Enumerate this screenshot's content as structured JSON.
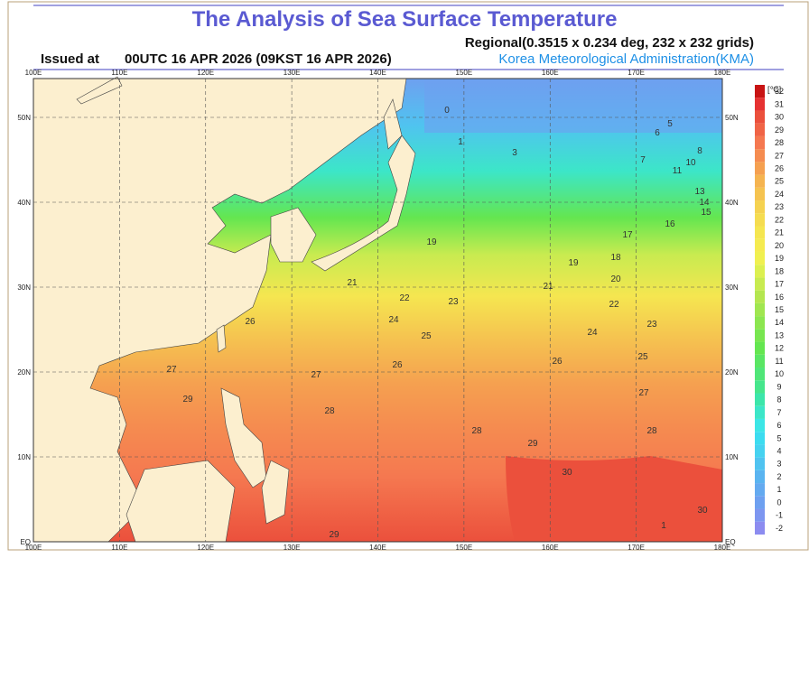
{
  "header": {
    "title": "The Analysis of Sea Surface Temperature",
    "subtitle": "Regional(0.3515 x 0.234 deg, 232 x 232 grids)",
    "issued_label": "Issued at",
    "issued_time": "00UTC 16 APR 2026 (09KST 16 APR 2026)",
    "agency": "Korea Meteorological Administration(KMA)"
  },
  "axes": {
    "longitudes": [
      "100E",
      "110E",
      "120E",
      "130E",
      "140E",
      "150E",
      "160E",
      "170E",
      "180E"
    ],
    "latitudes": [
      "EQ",
      "10N",
      "20N",
      "30N",
      "40N",
      "50N"
    ]
  },
  "colorbar": {
    "unit": "[℃]",
    "levels": [
      "-2",
      "-1",
      "0",
      "1",
      "2",
      "3",
      "4",
      "5",
      "6",
      "7",
      "8",
      "9",
      "10",
      "11",
      "12",
      "13",
      "14",
      "15",
      "16",
      "17",
      "18",
      "19",
      "20",
      "21",
      "22",
      "23",
      "24",
      "25",
      "26",
      "27",
      "28",
      "29",
      "30",
      "31",
      "32"
    ],
    "colors": [
      "#8c8cf0",
      "#7d96f0",
      "#6ea0f0",
      "#64aaf0",
      "#5ab4f0",
      "#50c3f0",
      "#46d2f0",
      "#3cdcf0",
      "#3ce6e6",
      "#3ce6c8",
      "#3ce6aa",
      "#46e68c",
      "#50e678",
      "#5ae664",
      "#64e650",
      "#78e650",
      "#8ce650",
      "#a0e650",
      "#b4e650",
      "#c8eb50",
      "#dcf050",
      "#f0f050",
      "#f5eb50",
      "#f5e650",
      "#f5dc50",
      "#f5d250",
      "#f5c350",
      "#f5b450",
      "#f5a050",
      "#f58c50",
      "#f57850",
      "#f06446",
      "#eb503c",
      "#e63232",
      "#c81414"
    ]
  },
  "contour_labels": [
    "0",
    "1",
    "3",
    "5",
    "6",
    "7",
    "8",
    "10",
    "11",
    "13",
    "14",
    "15",
    "16",
    "17",
    "18",
    "19",
    "19",
    "20",
    "21",
    "21",
    "22",
    "22",
    "23",
    "23",
    "24",
    "24",
    "25",
    "25",
    "26",
    "26",
    "26",
    "27",
    "27",
    "27",
    "28",
    "28",
    "28",
    "29",
    "29",
    "29",
    "30",
    "30",
    "1"
  ]
}
